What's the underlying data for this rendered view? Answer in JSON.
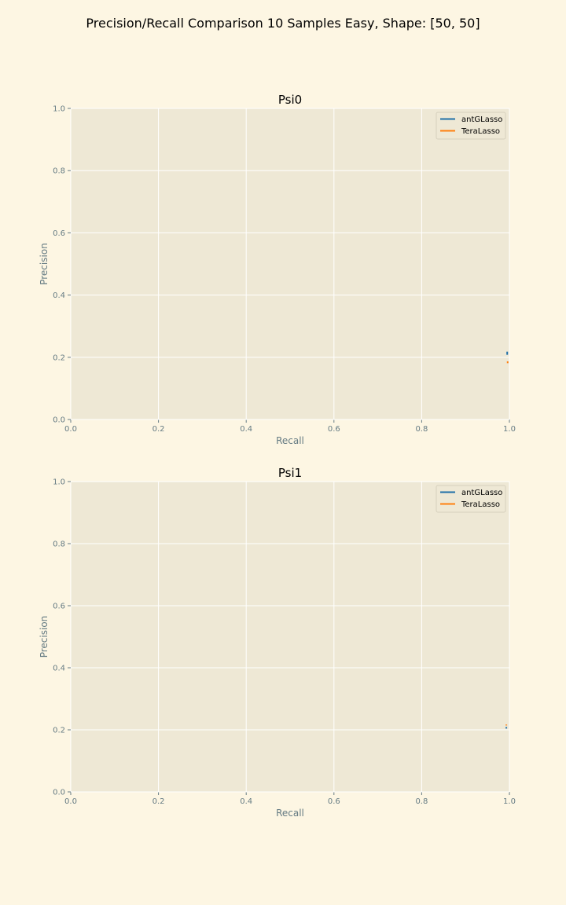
{
  "figure": {
    "title": "Precision/Recall Comparison 10 Samples Easy, Shape: [50, 50]"
  },
  "colors": {
    "figure_background": "#fdf6e3",
    "axes_background": "#eee8d5",
    "grid": "#ffffff",
    "antGLasso": "#1f6fa8",
    "TeraLasso": "#ff7f0e"
  },
  "chart_data": [
    {
      "type": "line",
      "title": "Psi0",
      "xlabel": "Recall",
      "ylabel": "Precision",
      "xlim": [
        0,
        1
      ],
      "ylim": [
        0,
        1
      ],
      "xticks": [
        "0.0",
        "0.2",
        "0.4",
        "0.6",
        "0.8",
        "1.0"
      ],
      "yticks": [
        "0.0",
        "0.2",
        "0.4",
        "0.6",
        "0.8",
        "1.0"
      ],
      "grid": true,
      "legend": "top-right",
      "series": [
        {
          "name": "antGLasso",
          "color": "#1f6fa8",
          "x": [
            0.995,
            0.995
          ],
          "y": [
            0.208,
            0.218
          ]
        },
        {
          "name": "TeraLasso",
          "color": "#ff7f0e",
          "x": [
            0.996,
            0.996
          ],
          "y": [
            0.181,
            0.187
          ]
        }
      ]
    },
    {
      "type": "line",
      "title": "Psi1",
      "xlabel": "Recall",
      "ylabel": "Precision",
      "xlim": [
        0,
        1
      ],
      "ylim": [
        0,
        1
      ],
      "xticks": [
        "0.0",
        "0.2",
        "0.4",
        "0.6",
        "0.8",
        "1.0"
      ],
      "yticks": [
        "0.0",
        "0.2",
        "0.4",
        "0.6",
        "0.8",
        "1.0"
      ],
      "grid": true,
      "legend": "top-right",
      "series": [
        {
          "name": "antGLasso",
          "color": "#1f6fa8",
          "x": [
            0.993,
            0.993
          ],
          "y": [
            0.204,
            0.209
          ]
        },
        {
          "name": "TeraLasso",
          "color": "#ff7f0e",
          "x": [
            0.993,
            0.993
          ],
          "y": [
            0.214,
            0.217
          ]
        }
      ]
    }
  ]
}
